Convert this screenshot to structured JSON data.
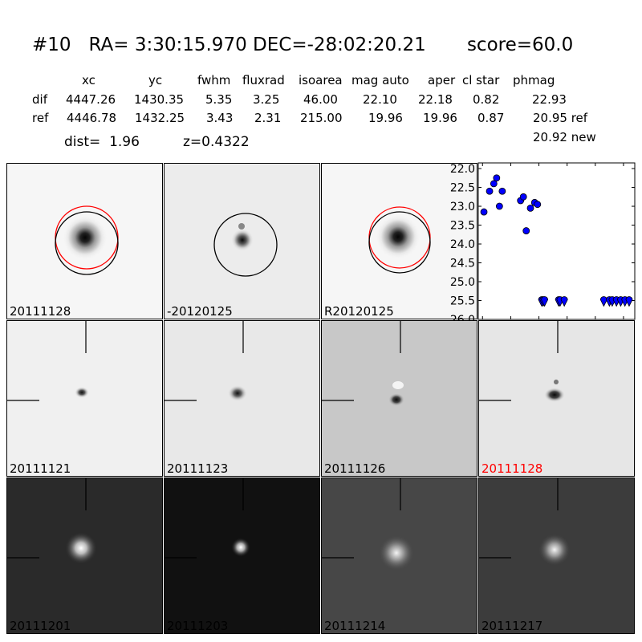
{
  "header": {
    "title": "#10   RA= 3:30:15.970 DEC=-28:02:20.21       score=60.0",
    "columns": [
      "xc",
      "yc",
      "fwhm",
      "fluxrad",
      "isoarea",
      "mag auto",
      "aper",
      "cl star",
      "phmag"
    ],
    "rows": [
      {
        "label": "dif",
        "values": [
          "4447.26",
          "1430.35",
          "5.35",
          "3.25",
          "46.00",
          "22.10",
          "22.18",
          "0.82",
          "22.93"
        ]
      },
      {
        "label": "ref",
        "values": [
          "4446.78",
          "1432.25",
          "3.43",
          "2.31",
          "215.00",
          "19.96",
          "19.96",
          "0.87",
          "20.95 ref"
        ]
      }
    ],
    "extra_phmag": "20.92 new",
    "dist_label": "dist=  1.96",
    "z_label": "z=0.4322"
  },
  "panels": {
    "row1": [
      "20111128",
      "-20120125",
      "R20120125"
    ],
    "row2": [
      "20111121",
      "20111123",
      "20111126",
      "20111128"
    ],
    "row3": [
      "20111201",
      "20111203",
      "20111214",
      "20111217"
    ],
    "highlight_color": "#ff0000"
  },
  "chart_data": {
    "type": "scatter",
    "title": "",
    "xlabel": "",
    "ylabel": "",
    "xlim": [
      -3,
      108
    ],
    "ylim": [
      26.0,
      21.85
    ],
    "y_inverted": true,
    "grid": false,
    "xticks": [
      0,
      20,
      40,
      60,
      80,
      100
    ],
    "yticks": [
      22.0,
      22.5,
      23.0,
      23.5,
      24.0,
      24.5,
      25.0,
      25.5,
      26.0
    ],
    "ytick_labels": [
      "22.0",
      "22.5",
      "23.0",
      "23.5",
      "24.0",
      "24.5",
      "25.0",
      "25.5",
      "26.0"
    ],
    "marker_color": "#0000ff",
    "detections": [
      {
        "x": 1,
        "y": 23.15
      },
      {
        "x": 5,
        "y": 22.6
      },
      {
        "x": 8,
        "y": 22.4
      },
      {
        "x": 10,
        "y": 22.25
      },
      {
        "x": 12,
        "y": 23.0
      },
      {
        "x": 14,
        "y": 22.6
      },
      {
        "x": 27,
        "y": 22.85
      },
      {
        "x": 29,
        "y": 22.75
      },
      {
        "x": 31,
        "y": 23.65
      },
      {
        "x": 34,
        "y": 23.05
      },
      {
        "x": 37,
        "y": 22.9
      },
      {
        "x": 39,
        "y": 22.95
      }
    ],
    "upper_limits": [
      {
        "x": 42,
        "y": 25.5
      },
      {
        "x": 43,
        "y": 25.5
      },
      {
        "x": 44,
        "y": 25.5
      },
      {
        "x": 54,
        "y": 25.5
      },
      {
        "x": 55,
        "y": 25.5
      },
      {
        "x": 58,
        "y": 25.5
      },
      {
        "x": 86,
        "y": 25.5
      },
      {
        "x": 90,
        "y": 25.5
      },
      {
        "x": 92,
        "y": 25.5
      },
      {
        "x": 95,
        "y": 25.5
      },
      {
        "x": 98,
        "y": 25.5
      },
      {
        "x": 101,
        "y": 25.5
      },
      {
        "x": 104,
        "y": 25.5
      }
    ]
  }
}
